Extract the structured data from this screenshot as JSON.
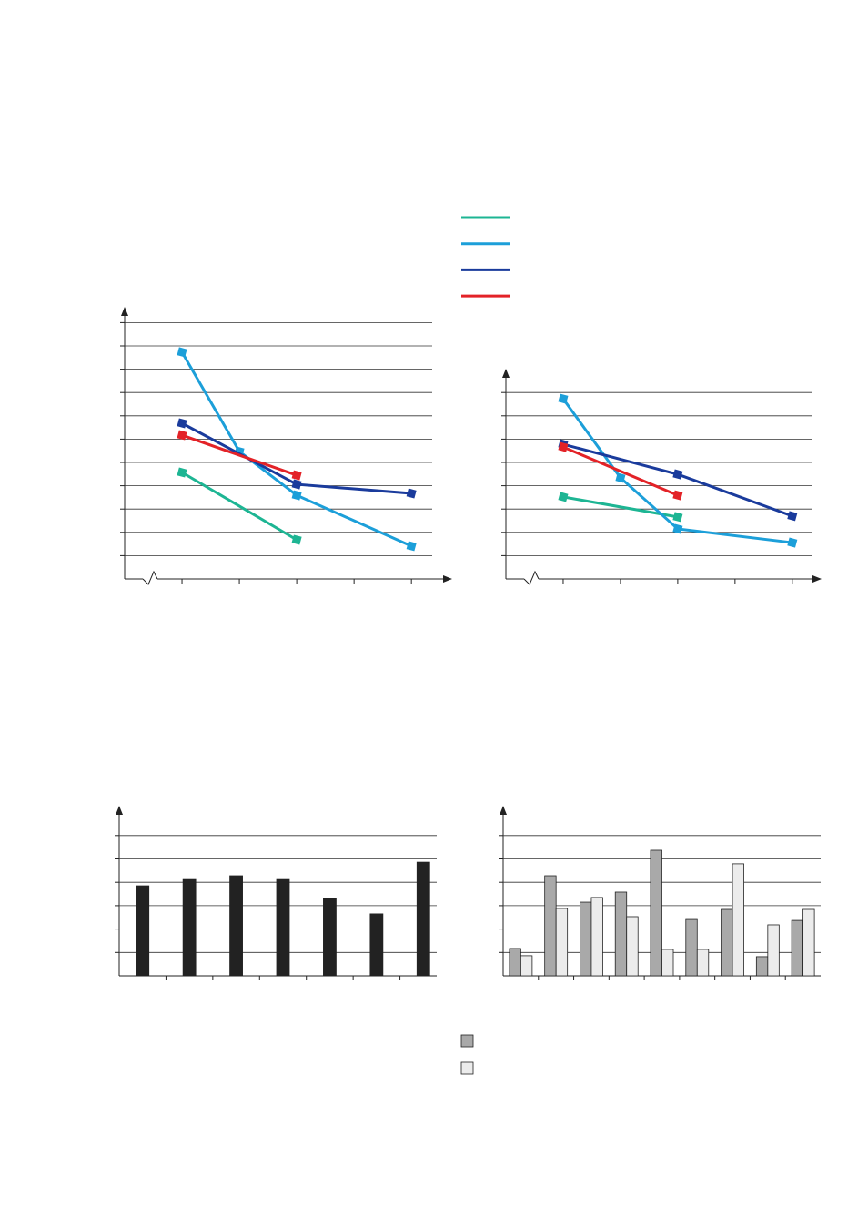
{
  "chart_data": [
    {
      "type": "line",
      "xlim": [
        0,
        5.6
      ],
      "ylim": [
        0,
        11.6
      ],
      "xticks": [
        1,
        2,
        3,
        4,
        5
      ],
      "yticks": [
        1,
        2,
        3,
        4,
        5,
        6,
        7,
        8,
        9,
        10,
        11
      ],
      "grid": true,
      "series": [
        {
          "color": "#1db593",
          "x": [
            1,
            3
          ],
          "values": [
            4.57,
            1.68
          ]
        },
        {
          "color": "#1c9fd9",
          "x": [
            1,
            2,
            3,
            5
          ],
          "values": [
            9.73,
            5.47,
            3.59,
            1.41
          ]
        },
        {
          "color": "#1a3b9c",
          "x": [
            1,
            3,
            5
          ],
          "values": [
            6.68,
            4.06,
            3.67
          ]
        },
        {
          "color": "#e32227",
          "x": [
            1,
            3
          ],
          "values": [
            6.17,
            4.45
          ]
        }
      ]
    },
    {
      "type": "line",
      "xlim": [
        0,
        5.4
      ],
      "ylim": [
        0,
        8.9
      ],
      "xticks": [
        1,
        2,
        3,
        4,
        5
      ],
      "yticks": [
        1,
        2,
        3,
        4,
        5,
        6,
        7,
        8
      ],
      "grid": true,
      "series": [
        {
          "color": "#1db593",
          "x": [
            1,
            3
          ],
          "values": [
            3.52,
            2.66
          ]
        },
        {
          "color": "#1c9fd9",
          "x": [
            1,
            2,
            3,
            5
          ],
          "values": [
            7.73,
            4.34,
            2.15,
            1.56
          ]
        },
        {
          "color": "#1a3b9c",
          "x": [
            1,
            3,
            5
          ],
          "values": [
            5.78,
            4.49,
            2.7
          ]
        },
        {
          "color": "#e32227",
          "x": [
            1,
            3
          ],
          "values": [
            5.66,
            3.59
          ]
        }
      ]
    },
    {
      "type": "bar",
      "ylim": [
        0,
        7.2
      ],
      "yticks": [
        1,
        2,
        3,
        4,
        5,
        6
      ],
      "grid": true,
      "categories": [
        null,
        null,
        null,
        null,
        null,
        null,
        null
      ],
      "series": [
        {
          "color": "#222222",
          "values": [
            3.85,
            4.12,
            4.28,
            4.12,
            3.31,
            2.65,
            4.86
          ]
        }
      ]
    },
    {
      "type": "bar",
      "ylim": [
        0,
        7.2
      ],
      "yticks": [
        1,
        2,
        3,
        4,
        5,
        6
      ],
      "grid": true,
      "categories": [
        null,
        null,
        null,
        null,
        null,
        null,
        null,
        null,
        null
      ],
      "series": [
        {
          "color": "#a9a9a9",
          "values": [
            1.17,
            4.28,
            3.15,
            3.58,
            5.37,
            2.41,
            2.84,
            0.82,
            2.37
          ]
        },
        {
          "color": "#ececec",
          "values": [
            0.86,
            2.88,
            3.35,
            2.53,
            1.13,
            1.13,
            4.79,
            2.18,
            2.84
          ]
        }
      ]
    }
  ]
}
